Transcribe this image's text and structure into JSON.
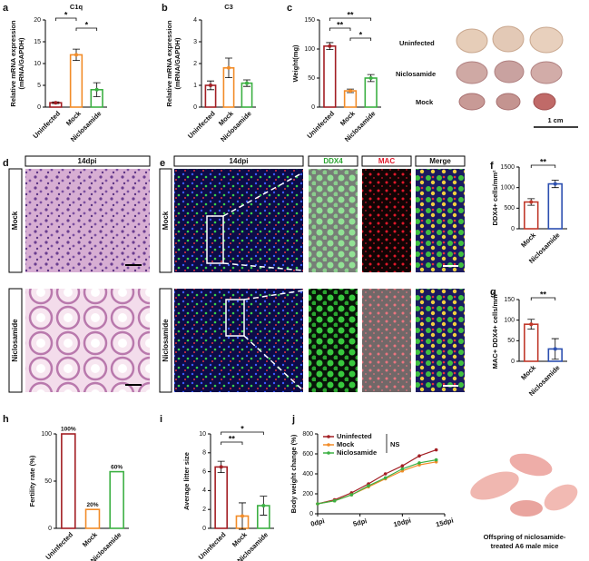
{
  "panels": [
    "a",
    "b",
    "c",
    "d",
    "e",
    "f",
    "g",
    "h",
    "i",
    "j"
  ],
  "images": {
    "c": {
      "labels": [
        "Uninfected",
        "Niclosamide",
        "Mock"
      ],
      "scale": "1 cm"
    },
    "d": {
      "header": "14dpi",
      "rows": [
        "Mock",
        "Niclosamide"
      ]
    },
    "e": {
      "headers": [
        "14dpi",
        "DDX4",
        "MAC",
        "Merge"
      ],
      "rows": [
        "Mock",
        "Niclosamide"
      ]
    },
    "j": {
      "caption": [
        "Offspring of niclosamide-",
        "treated A6 male mice"
      ]
    }
  },
  "chart_data": [
    {
      "type": "bar",
      "title": "C1q",
      "ylabel": [
        "Relative mRNA expression",
        "(mRNA/GAPDH)"
      ],
      "categories": [
        "Uninfected",
        "Mock",
        "Niclosamide"
      ],
      "values": [
        1,
        12,
        4
      ],
      "errors": [
        0.2,
        1.3,
        1.6
      ],
      "colors": [
        "#a31f24",
        "#f28c28",
        "#3cb043"
      ],
      "ylim": [
        0,
        20
      ],
      "yticks": [
        0,
        5,
        10,
        15,
        20
      ],
      "significance": [
        "*",
        "*"
      ]
    },
    {
      "type": "bar",
      "title": "C3",
      "ylabel": [
        "Relative mRNA expression",
        "(mRNA/GAPDH)"
      ],
      "categories": [
        "Uninfected",
        "Mock",
        "Niclosamide"
      ],
      "values": [
        1,
        1.8,
        1.1
      ],
      "errors": [
        0.2,
        0.45,
        0.15
      ],
      "colors": [
        "#a31f24",
        "#f28c28",
        "#3cb043"
      ],
      "ylim": [
        0,
        4
      ],
      "yticks": [
        0,
        1,
        2,
        3,
        4
      ],
      "significance": []
    },
    {
      "type": "bar",
      "ylabel": [
        "Weight(mg)"
      ],
      "categories": [
        "Uninfected",
        "Mock",
        "Niclosamide"
      ],
      "values": [
        105,
        28,
        50
      ],
      "errors": [
        6,
        3,
        6
      ],
      "colors": [
        "#a31f24",
        "#f28c28",
        "#3cb043"
      ],
      "ylim": [
        0,
        150
      ],
      "yticks": [
        0,
        50,
        100,
        150
      ],
      "significance": [
        "**",
        "**",
        "*"
      ]
    },
    {
      "type": "bar",
      "ylabel": [
        "DDX4+ cells/mm²"
      ],
      "categories": [
        "Mock",
        "Niclosamide"
      ],
      "values": [
        650,
        1090
      ],
      "errors": [
        80,
        90
      ],
      "colors": [
        "#c0392b",
        "#2c4fb0"
      ],
      "ylim": [
        0,
        1500
      ],
      "yticks": [
        0,
        500,
        1000,
        1500
      ],
      "significance": [
        "**"
      ]
    },
    {
      "type": "bar",
      "ylabel": [
        "MAC+ DDX4+ cells/mm²"
      ],
      "categories": [
        "Mock",
        "Niclosamide"
      ],
      "values": [
        90,
        30
      ],
      "errors": [
        12,
        25
      ],
      "colors": [
        "#c0392b",
        "#2c4fb0"
      ],
      "ylim": [
        0,
        150
      ],
      "yticks": [
        0,
        50,
        100,
        150
      ],
      "significance": [
        "**"
      ]
    },
    {
      "type": "bar",
      "ylabel": [
        "Fertility rate (%)"
      ],
      "categories": [
        "Uninfected",
        "Mock",
        "Niclosamide"
      ],
      "values": [
        100,
        20,
        60
      ],
      "value_labels": [
        "100%",
        "20%",
        "60%"
      ],
      "colors": [
        "#a31f24",
        "#f28c28",
        "#3cb043"
      ],
      "ylim": [
        0,
        100
      ],
      "yticks": [
        0,
        50,
        100
      ],
      "significance": []
    },
    {
      "type": "bar",
      "ylabel": [
        "Average litter size"
      ],
      "categories": [
        "Uninfected",
        "Mock",
        "Niclosamide"
      ],
      "values": [
        6.5,
        1.3,
        2.4
      ],
      "errors": [
        0.6,
        1.4,
        1.0
      ],
      "colors": [
        "#a31f24",
        "#f28c28",
        "#3cb043"
      ],
      "ylim": [
        0,
        10
      ],
      "yticks": [
        0,
        2,
        4,
        6,
        8,
        10
      ],
      "significance": [
        "*",
        "**"
      ]
    },
    {
      "type": "line",
      "ylabel": [
        "Body weight change (%)"
      ],
      "x": [
        0,
        2,
        4,
        6,
        8,
        10,
        12,
        14
      ],
      "xlim": [
        0,
        15
      ],
      "xticks": [
        {
          "value": 0,
          "label": "0dpi"
        },
        {
          "value": 5,
          "label": "5dpi"
        },
        {
          "value": 10,
          "label": "10dpi"
        },
        {
          "value": 15,
          "label": "15dpi"
        }
      ],
      "ylim": [
        0,
        800
      ],
      "yticks": [
        0,
        200,
        400,
        600,
        800
      ],
      "annotation": "NS",
      "series": [
        {
          "name": "Uninfected",
          "color": "#a31f24",
          "values": [
            100,
            140,
            210,
            300,
            400,
            480,
            580,
            640
          ]
        },
        {
          "name": "Mock",
          "color": "#f28c28",
          "values": [
            100,
            130,
            190,
            270,
            350,
            430,
            490,
            520
          ]
        },
        {
          "name": "Niclosamide",
          "color": "#3cb043",
          "values": [
            100,
            130,
            190,
            280,
            360,
            450,
            510,
            540
          ]
        }
      ]
    }
  ]
}
